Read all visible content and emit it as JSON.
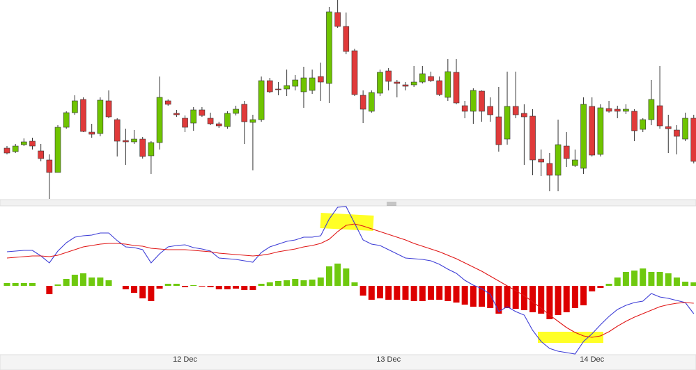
{
  "chart_data": [
    {
      "type": "candlestick",
      "categories": [
        null,
        null,
        null,
        null,
        null,
        null,
        null,
        null,
        null,
        null,
        null,
        null,
        null,
        null,
        null,
        null,
        null,
        null,
        null,
        null,
        null,
        "12 Dec",
        null,
        null,
        null,
        null,
        null,
        null,
        null,
        null,
        null,
        null,
        null,
        null,
        null,
        null,
        null,
        null,
        null,
        null,
        null,
        null,
        null,
        null,
        null,
        "13 Dec",
        null,
        null,
        null,
        null,
        null,
        null,
        null,
        null,
        null,
        null,
        null,
        null,
        null,
        null,
        null,
        null,
        null,
        null,
        null,
        null,
        null,
        null,
        null,
        "14 Dec",
        null,
        null,
        null,
        null,
        null,
        null,
        null,
        null,
        null,
        null,
        null,
        null
      ],
      "open": [
        77,
        72,
        82,
        87,
        73,
        60,
        42,
        107,
        128,
        147,
        100,
        98,
        145,
        118,
        88,
        86,
        90,
        66,
        85,
        145,
        127,
        120,
        113,
        132,
        120,
        112,
        108,
        127,
        140,
        114,
        118,
        174,
        162,
        162,
        166,
        158,
        160,
        180,
        170,
        272,
        252,
        217,
        153,
        130,
        156,
        188,
        172,
        168,
        168,
        172,
        180,
        174,
        150,
        186,
        138,
        130,
        159,
        137,
        122,
        90,
        137,
        127,
        123,
        61,
        55,
        38,
        80,
        52,
        48,
        137,
        68,
        134,
        133,
        130,
        130,
        104,
        118,
        138,
        108,
        103,
        90,
        120
      ],
      "high": [
        80,
        83,
        91,
        92,
        83,
        68,
        110,
        130,
        153,
        150,
        112,
        150,
        160,
        120,
        105,
        103,
        93,
        87,
        180,
        147,
        132,
        124,
        136,
        136,
        128,
        115,
        130,
        138,
        145,
        125,
        180,
        178,
        172,
        190,
        182,
        194,
        190,
        200,
        280,
        290,
        272,
        220,
        160,
        160,
        190,
        192,
        175,
        172,
        195,
        195,
        187,
        180,
        205,
        205,
        145,
        163,
        160,
        150,
        165,
        187,
        187,
        140,
        133,
        75,
        70,
        118,
        100,
        75,
        150,
        150,
        140,
        145,
        138,
        140,
        133,
        120,
        175,
        195,
        125,
        110,
        128,
        125
      ],
      "low": [
        68,
        70,
        80,
        75,
        58,
        4,
        42,
        105,
        125,
        100,
        92,
        94,
        120,
        65,
        53,
        83,
        62,
        40,
        75,
        138,
        122,
        100,
        102,
        122,
        110,
        106,
        105,
        124,
        83,
        45,
        115,
        156,
        153,
        152,
        160,
        135,
        155,
        145,
        142,
        250,
        212,
        152,
        113,
        128,
        152,
        160,
        150,
        160,
        165,
        170,
        172,
        152,
        145,
        140,
        120,
        112,
        115,
        115,
        72,
        82,
        120,
        53,
        38,
        37,
        15,
        15,
        50,
        50,
        40,
        65,
        65,
        128,
        120,
        126,
        87,
        100,
        110,
        105,
        70,
        68,
        87,
        55
      ],
      "close": [
        70,
        80,
        86,
        80,
        62,
        42,
        107,
        128,
        145,
        101,
        97,
        146,
        122,
        87,
        86,
        90,
        65,
        85,
        150,
        140,
        125,
        107,
        132,
        124,
        112,
        109,
        127,
        133,
        115,
        118,
        174,
        158,
        161,
        167,
        175,
        178,
        178,
        172,
        273,
        252,
        216,
        154,
        133,
        157,
        186,
        173,
        170,
        166,
        172,
        184,
        174,
        154,
        187,
        142,
        130,
        160,
        130,
        125,
        82,
        137,
        125,
        122,
        60,
        57,
        38,
        82,
        62,
        60,
        140,
        67,
        135,
        130,
        130,
        133,
        102,
        118,
        147,
        109,
        105,
        94,
        120,
        58
      ],
      "up_color": "#6fc400",
      "down_color": "#e03a3a",
      "ylim": [
        0,
        290
      ]
    },
    {
      "type": "macd",
      "series": [
        {
          "name": "histogram",
          "up_color": "#6fc90f",
          "down_color": "#dd0000",
          "values": [
            4,
            4,
            4,
            4,
            0,
            -12,
            2,
            10,
            16,
            18,
            12,
            12,
            8,
            0,
            -5,
            -10,
            -18,
            -22,
            -4,
            3,
            3,
            -2,
            1,
            -1,
            -2,
            -5,
            -5,
            -4,
            -6,
            -6,
            3,
            5,
            7,
            8,
            10,
            8,
            9,
            12,
            28,
            32,
            25,
            5,
            -14,
            -20,
            -18,
            -20,
            -20,
            -20,
            -22,
            -22,
            -20,
            -20,
            -22,
            -24,
            -27,
            -30,
            -30,
            -32,
            -40,
            -32,
            -33,
            -35,
            -38,
            -40,
            -48,
            -42,
            -38,
            -32,
            -28,
            -8,
            -3,
            3,
            12,
            20,
            22,
            25,
            20,
            20,
            18,
            12,
            6,
            5
          ]
        },
        {
          "name": "macd",
          "color": "#3b3bd6",
          "values": [
            49,
            50,
            51,
            51,
            43,
            33,
            50,
            62,
            70,
            72,
            73,
            76,
            76,
            65,
            56,
            55,
            52,
            33,
            46,
            56,
            58,
            59,
            55,
            53,
            50,
            40,
            39,
            38,
            36,
            34,
            48,
            56,
            60,
            64,
            66,
            70,
            70,
            72,
            96,
            113,
            114,
            90,
            66,
            60,
            58,
            52,
            46,
            40,
            39,
            38,
            36,
            31,
            24,
            18,
            8,
            1,
            -4,
            -12,
            -37,
            -30,
            -37,
            -42,
            -64,
            -80,
            -90,
            -94,
            -96,
            -98,
            -80,
            -69,
            -56,
            -44,
            -34,
            -28,
            -24,
            -22,
            -11,
            -16,
            -18,
            -21,
            -24,
            -40
          ]
        },
        {
          "name": "signal",
          "color": "#e01515",
          "values": [
            40,
            41,
            42,
            43,
            43,
            42,
            44,
            48,
            52,
            56,
            58,
            60,
            61,
            61,
            60,
            58,
            57,
            54,
            53,
            52,
            52,
            52,
            51,
            50,
            49,
            47,
            46,
            45,
            44,
            43,
            44,
            46,
            49,
            51,
            53,
            56,
            58,
            61,
            67,
            78,
            87,
            89,
            86,
            82,
            78,
            74,
            70,
            66,
            61,
            57,
            53,
            49,
            44,
            39,
            33,
            27,
            21,
            14,
            7,
            0,
            -7,
            -14,
            -23,
            -32,
            -42,
            -51,
            -60,
            -67,
            -72,
            -74,
            -72,
            -66,
            -58,
            -51,
            -45,
            -40,
            -35,
            -30,
            -27,
            -25,
            -24,
            -25
          ]
        }
      ],
      "ylim": [
        -99,
        116
      ]
    }
  ]
}
